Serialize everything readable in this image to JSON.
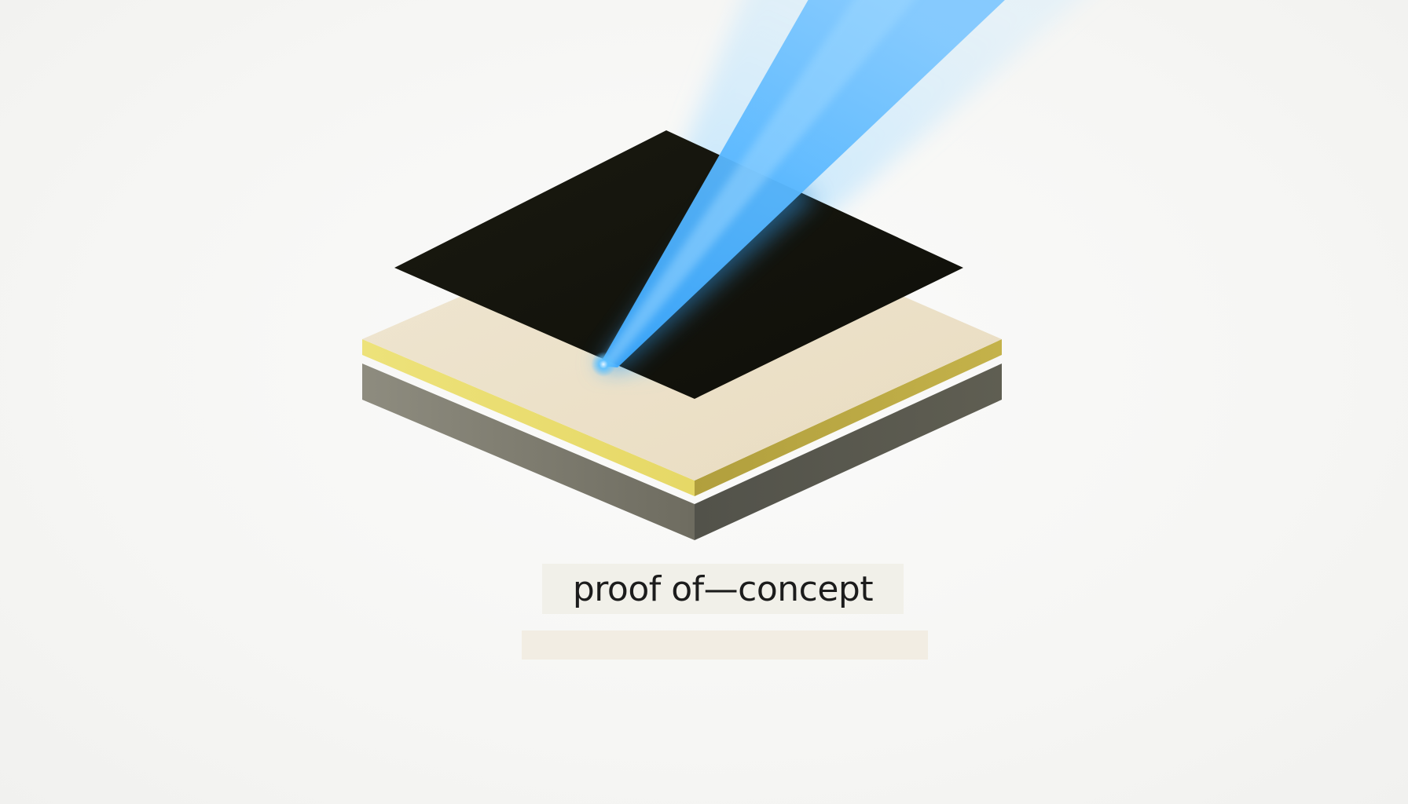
{
  "caption": {
    "text": "proof of—concept"
  },
  "colors": {
    "background": "#f7f7f5",
    "wafer_top": "#ede3cd",
    "wafer_edge_yellow": "#e7dd74",
    "substrate_left": "#8a887a",
    "substrate_right": "#55554a",
    "dark_layer": "#14140d",
    "beam": "#4fb3ff",
    "caption_box": "#f1f0e9",
    "caption_bar": "#f2ede3"
  },
  "icons": {
    "layer_stack": "layered-wafer-icon",
    "beam": "light-beam-icon"
  }
}
